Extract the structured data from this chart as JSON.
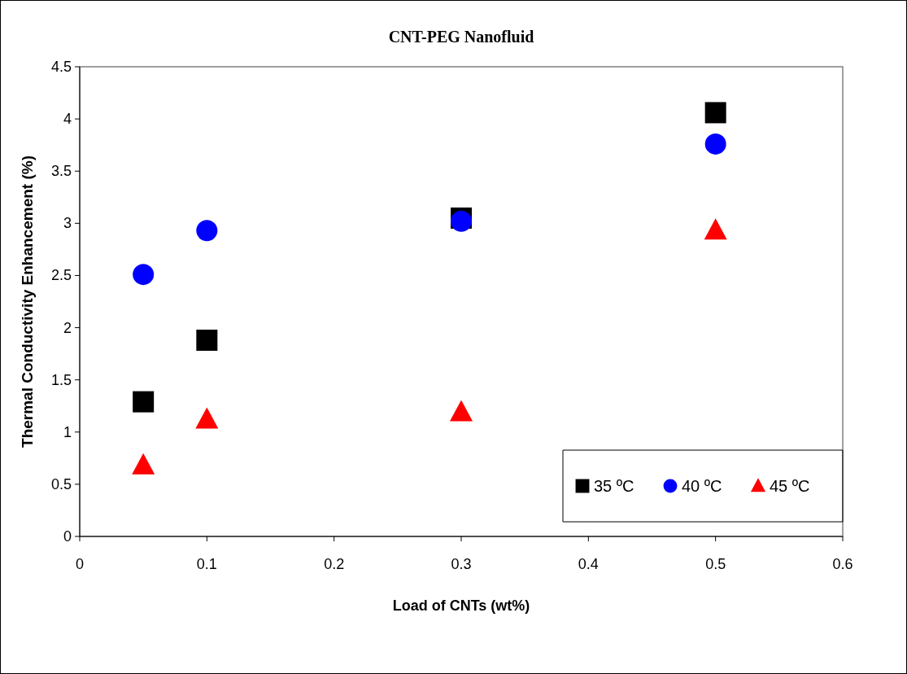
{
  "chart_data": {
    "type": "scatter",
    "title": "CNT-PEG Nanofluid",
    "xlabel": "Load of CNTs (wt%)",
    "ylabel": "Thermal Conductivity Enhancement (%)",
    "x": [
      0.05,
      0.1,
      0.3,
      0.5
    ],
    "series": [
      {
        "name": "35 ºC",
        "color": "#000000",
        "marker": "square",
        "values": [
          1.29,
          1.88,
          3.05,
          4.06
        ]
      },
      {
        "name": "40 ºC",
        "color": "#0000ff",
        "marker": "circle",
        "values": [
          2.51,
          2.93,
          3.02,
          3.76
        ]
      },
      {
        "name": "45 ºC",
        "color": "#ff0000",
        "marker": "triangle",
        "values": [
          0.68,
          1.12,
          1.19,
          2.93
        ]
      }
    ],
    "xlim": [
      0,
      0.6
    ],
    "xticks": [
      0,
      0.1,
      0.2,
      0.3,
      0.4,
      0.5,
      0.6
    ],
    "ylim": [
      0,
      4.5
    ],
    "yticks": [
      0,
      0.5,
      1,
      1.5,
      2,
      2.5,
      3,
      3.5,
      4,
      4.5
    ],
    "grid": false,
    "legend": "bottom right"
  }
}
